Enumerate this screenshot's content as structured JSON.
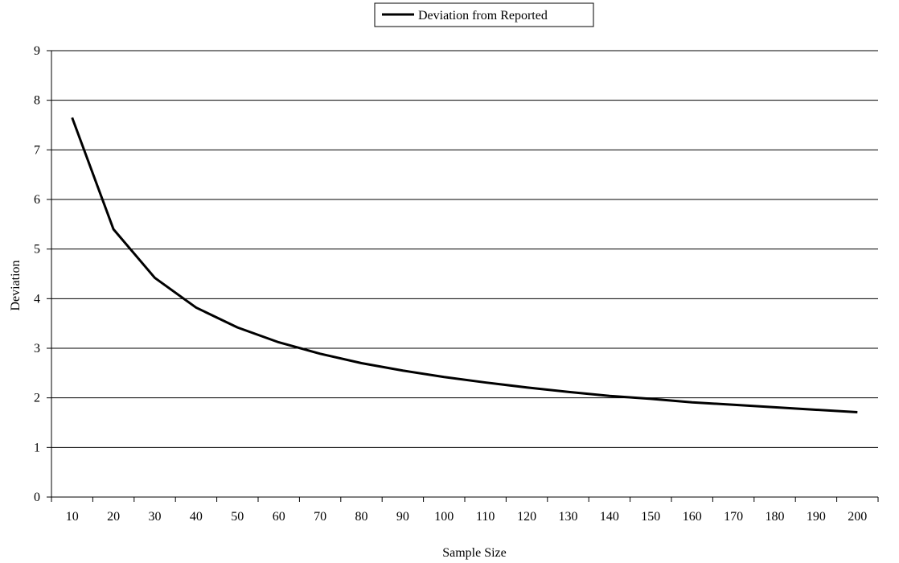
{
  "chart_data": {
    "type": "line",
    "title": "",
    "xlabel": "Sample Size",
    "ylabel": "Deviation",
    "x": [
      10,
      20,
      30,
      40,
      50,
      60,
      70,
      80,
      90,
      100,
      110,
      120,
      130,
      140,
      150,
      160,
      170,
      180,
      190,
      200
    ],
    "ylim": [
      0,
      9
    ],
    "yticks": [
      0,
      1,
      2,
      3,
      4,
      5,
      6,
      7,
      8,
      9
    ],
    "grid": true,
    "legend_position": "top-center",
    "series": [
      {
        "name": "Deviation from Reported",
        "color": "#000000",
        "values": [
          7.65,
          5.4,
          4.42,
          3.82,
          3.42,
          3.12,
          2.89,
          2.7,
          2.55,
          2.42,
          2.31,
          2.21,
          2.12,
          2.04,
          1.98,
          1.91,
          1.86,
          1.81,
          1.76,
          1.71
        ]
      }
    ]
  }
}
